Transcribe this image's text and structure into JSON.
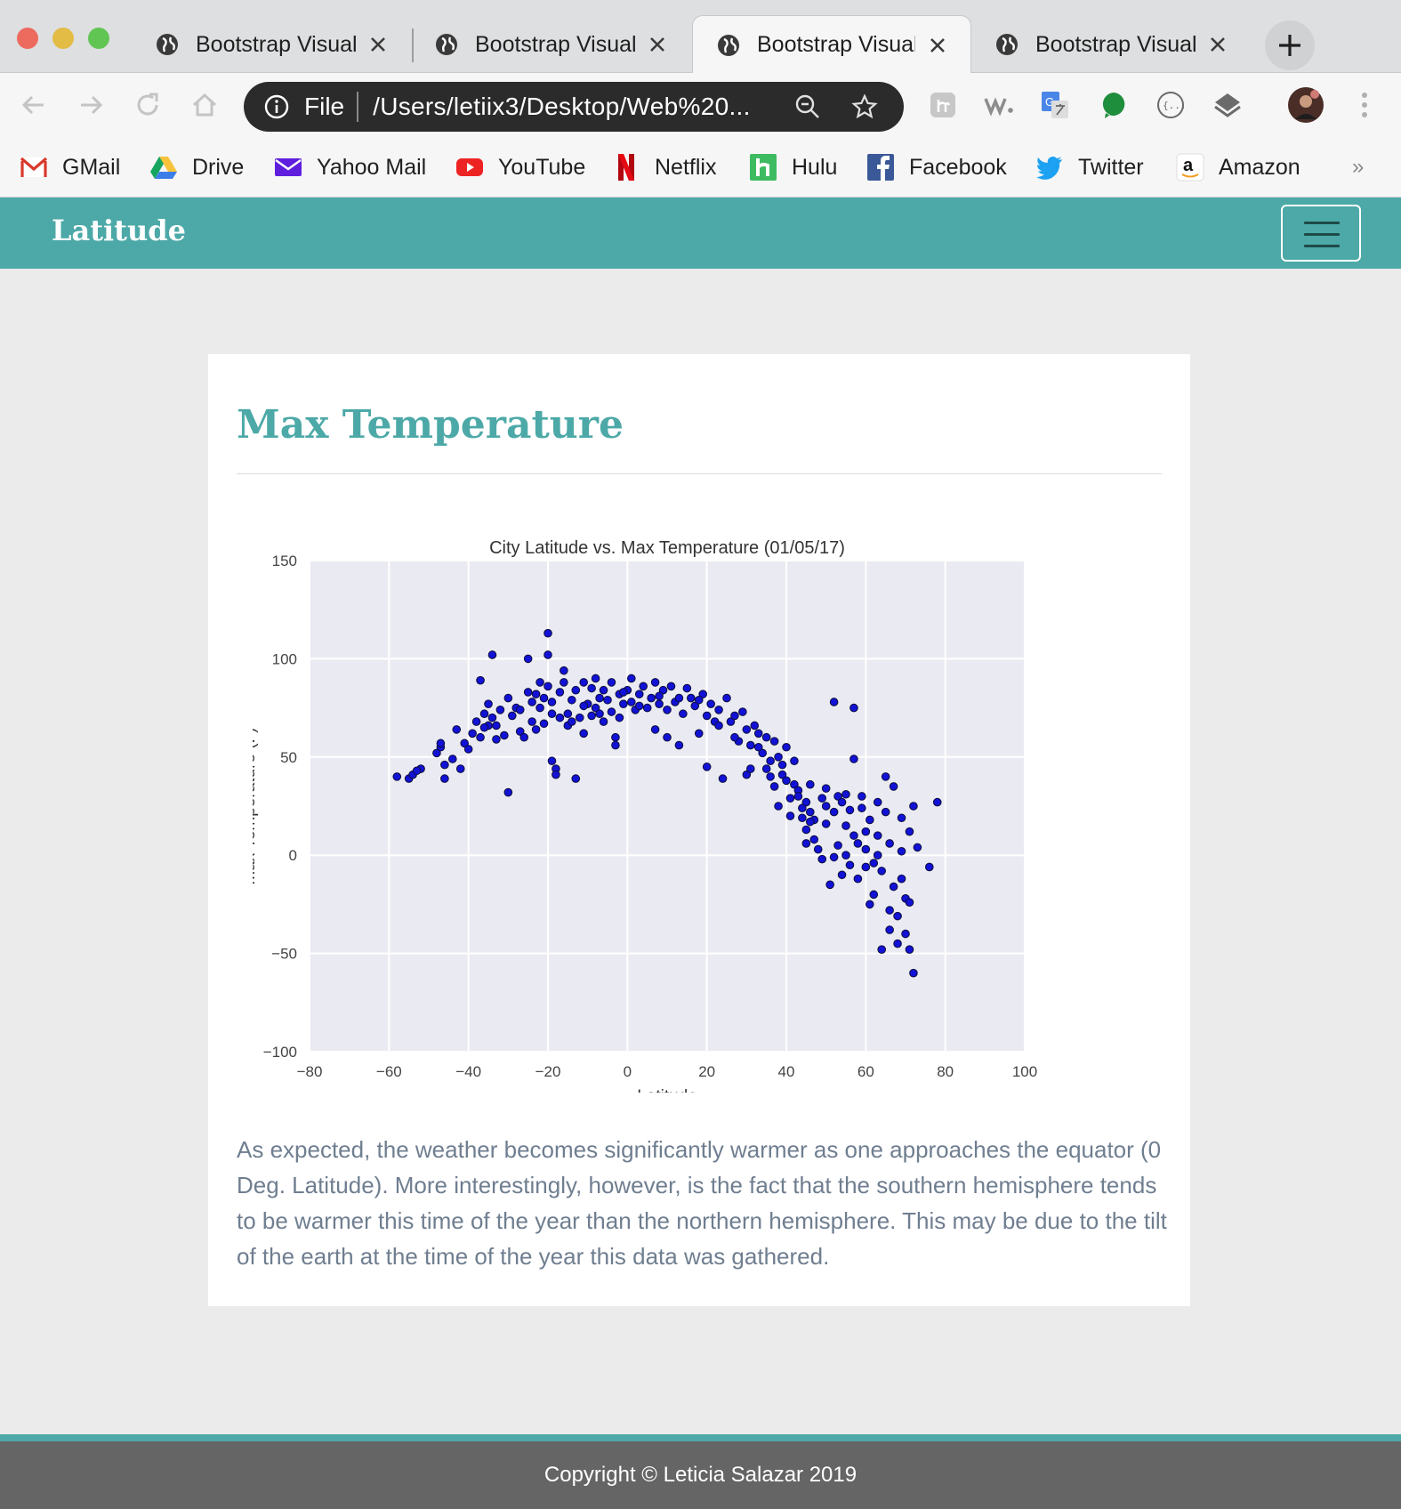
{
  "browser": {
    "tabs": [
      {
        "title": "Bootstrap Visual",
        "active": false
      },
      {
        "title": "Bootstrap Visual",
        "active": false
      },
      {
        "title": "Bootstrap Visual",
        "active": true
      },
      {
        "title": "Bootstrap Visual",
        "active": false
      }
    ],
    "omnibox": {
      "scheme": "File",
      "url": "/Users/letiix3/Desktop/Web%20..."
    },
    "bookmarks": [
      {
        "label": "GMail",
        "icon": "gmail-icon"
      },
      {
        "label": "Drive",
        "icon": "drive-icon"
      },
      {
        "label": "Yahoo Mail",
        "icon": "yahoo-mail-icon"
      },
      {
        "label": "YouTube",
        "icon": "youtube-icon"
      },
      {
        "label": "Netflix",
        "icon": "netflix-icon"
      },
      {
        "label": "Hulu",
        "icon": "hulu-icon"
      },
      {
        "label": "Facebook",
        "icon": "facebook-icon"
      },
      {
        "label": "Twitter",
        "icon": "twitter-icon"
      },
      {
        "label": "Amazon",
        "icon": "amazon-icon"
      }
    ],
    "bookmarks_more": "»"
  },
  "navbar": {
    "brand": "Latitude"
  },
  "card": {
    "title": "Max Temperature",
    "description": "As expected, the weather becomes significantly warmer as one approaches the equator (0 Deg. Latitude). More interestingly, however, is the fact that the southern hemisphere tends to be warmer this time of the year than the northern hemisphere. This may be due to the tilt of the earth at the time of the year this data was gathered."
  },
  "footer": {
    "text": "Copyright © Leticia Salazar 2019"
  },
  "colors": {
    "accent": "#4ca9a7",
    "point_fill": "#1212d6",
    "point_stroke": "#0b0b3a",
    "plot_bg": "#eaeaf2"
  },
  "chart_data": {
    "type": "scatter",
    "title": "City Latitude vs. Max Temperature (01/05/17)",
    "xlabel": "Latitude",
    "ylabel": "Max Temperature (F)",
    "xlim": [
      -80,
      100
    ],
    "ylim": [
      -100,
      150
    ],
    "xticks": [
      -80,
      -60,
      -40,
      -20,
      0,
      20,
      40,
      60,
      80,
      100
    ],
    "yticks": [
      -100,
      -50,
      0,
      50,
      100,
      150
    ],
    "xtick_labels": [
      "−80",
      "−60",
      "−40",
      "−20",
      "0",
      "20",
      "40",
      "60",
      "80",
      "100"
    ],
    "ytick_labels": [
      "−100",
      "−50",
      "0",
      "50",
      "100",
      "150"
    ],
    "grid": true,
    "points": [
      [
        -55,
        39
      ],
      [
        -54,
        41
      ],
      [
        -52,
        44
      ],
      [
        -47,
        55
      ],
      [
        -47,
        57
      ],
      [
        -46,
        46
      ],
      [
        -46,
        39
      ],
      [
        -43,
        64
      ],
      [
        -42,
        44
      ],
      [
        -41,
        57
      ],
      [
        -39,
        62
      ],
      [
        -38,
        68
      ],
      [
        -37,
        89
      ],
      [
        -37,
        60
      ],
      [
        -36,
        72
      ],
      [
        -35,
        66
      ],
      [
        -35,
        77
      ],
      [
        -34,
        102
      ],
      [
        -34,
        70
      ],
      [
        -33,
        66
      ],
      [
        -33,
        59
      ],
      [
        -32,
        74
      ],
      [
        -31,
        61
      ],
      [
        -30,
        32
      ],
      [
        -30,
        80
      ],
      [
        -29,
        71
      ],
      [
        -28,
        75
      ],
      [
        -27,
        63
      ],
      [
        -26,
        60
      ],
      [
        -25,
        83
      ],
      [
        -25,
        100
      ],
      [
        -24,
        68
      ],
      [
        -24,
        78
      ],
      [
        -23,
        64
      ],
      [
        -23,
        82
      ],
      [
        -22,
        75
      ],
      [
        -22,
        88
      ],
      [
        -21,
        80
      ],
      [
        -20,
        113
      ],
      [
        -20,
        102
      ],
      [
        -20,
        86
      ],
      [
        -19,
        78
      ],
      [
        -19,
        72
      ],
      [
        -19,
        48
      ],
      [
        -18,
        44
      ],
      [
        -18,
        41
      ],
      [
        -17,
        70
      ],
      [
        -17,
        83
      ],
      [
        -16,
        88
      ],
      [
        -16,
        94
      ],
      [
        -15,
        72
      ],
      [
        -15,
        66
      ],
      [
        -14,
        79
      ],
      [
        -14,
        68
      ],
      [
        -13,
        39
      ],
      [
        -13,
        84
      ],
      [
        -12,
        70
      ],
      [
        -11,
        62
      ],
      [
        -11,
        88
      ],
      [
        -10,
        77
      ],
      [
        -9,
        71
      ],
      [
        -9,
        85
      ],
      [
        -8,
        90
      ],
      [
        -8,
        75
      ],
      [
        -7,
        80
      ],
      [
        -6,
        68
      ],
      [
        -6,
        84
      ],
      [
        -5,
        79
      ],
      [
        -4,
        73
      ],
      [
        -4,
        88
      ],
      [
        -3,
        60
      ],
      [
        -3,
        56
      ],
      [
        -2,
        82
      ],
      [
        -2,
        70
      ],
      [
        -1,
        77
      ],
      [
        0,
        84
      ],
      [
        1,
        90
      ],
      [
        1,
        78
      ],
      [
        2,
        74
      ],
      [
        3,
        82
      ],
      [
        4,
        86
      ],
      [
        5,
        75
      ],
      [
        6,
        80
      ],
      [
        7,
        64
      ],
      [
        7,
        88
      ],
      [
        8,
        77
      ],
      [
        9,
        84
      ],
      [
        10,
        74
      ],
      [
        10,
        60
      ],
      [
        11,
        86
      ],
      [
        12,
        78
      ],
      [
        13,
        56
      ],
      [
        14,
        72
      ],
      [
        15,
        85
      ],
      [
        16,
        80
      ],
      [
        17,
        76
      ],
      [
        18,
        62
      ],
      [
        19,
        82
      ],
      [
        20,
        45
      ],
      [
        20,
        71
      ],
      [
        21,
        77
      ],
      [
        22,
        68
      ],
      [
        23,
        74
      ],
      [
        24,
        39
      ],
      [
        25,
        80
      ],
      [
        26,
        68
      ],
      [
        27,
        71
      ],
      [
        28,
        58
      ],
      [
        29,
        73
      ],
      [
        30,
        64
      ],
      [
        30,
        41
      ],
      [
        31,
        44
      ],
      [
        32,
        66
      ],
      [
        33,
        62
      ],
      [
        33,
        55
      ],
      [
        34,
        52
      ],
      [
        35,
        60
      ],
      [
        35,
        44
      ],
      [
        36,
        48
      ],
      [
        37,
        35
      ],
      [
        37,
        58
      ],
      [
        38,
        50
      ],
      [
        39,
        41
      ],
      [
        40,
        38
      ],
      [
        40,
        55
      ],
      [
        41,
        20
      ],
      [
        41,
        29
      ],
      [
        42,
        48
      ],
      [
        42,
        36
      ],
      [
        43,
        33
      ],
      [
        44,
        19
      ],
      [
        44,
        24
      ],
      [
        45,
        27
      ],
      [
        45,
        13
      ],
      [
        46,
        36
      ],
      [
        46,
        22
      ],
      [
        47,
        8
      ],
      [
        47,
        18
      ],
      [
        48,
        3
      ],
      [
        49,
        29
      ],
      [
        49,
        -2
      ],
      [
        50,
        25
      ],
      [
        50,
        34
      ],
      [
        51,
        -15
      ],
      [
        52,
        22
      ],
      [
        52,
        -1
      ],
      [
        53,
        30
      ],
      [
        53,
        5
      ],
      [
        54,
        27
      ],
      [
        54,
        -10
      ],
      [
        55,
        31
      ],
      [
        55,
        15
      ],
      [
        56,
        -5
      ],
      [
        56,
        23
      ],
      [
        57,
        10
      ],
      [
        57,
        49
      ],
      [
        58,
        6
      ],
      [
        58,
        -12
      ],
      [
        59,
        24
      ],
      [
        59,
        30
      ],
      [
        60,
        12
      ],
      [
        60,
        3
      ],
      [
        61,
        -25
      ],
      [
        61,
        18
      ],
      [
        62,
        -4
      ],
      [
        62,
        -20
      ],
      [
        63,
        27
      ],
      [
        63,
        10
      ],
      [
        64,
        -48
      ],
      [
        64,
        -8
      ],
      [
        65,
        40
      ],
      [
        65,
        22
      ],
      [
        66,
        -38
      ],
      [
        66,
        6
      ],
      [
        67,
        -16
      ],
      [
        67,
        35
      ],
      [
        68,
        -31
      ],
      [
        68,
        -45
      ],
      [
        69,
        19
      ],
      [
        69,
        2
      ],
      [
        70,
        -22
      ],
      [
        70,
        -40
      ],
      [
        71,
        12
      ],
      [
        71,
        -48
      ],
      [
        72,
        25
      ],
      [
        72,
        -60
      ],
      [
        73,
        4
      ],
      [
        76,
        -6
      ],
      [
        78,
        27
      ],
      [
        52,
        78
      ],
      [
        57,
        75
      ],
      [
        -58,
        40
      ],
      [
        -53,
        43
      ],
      [
        -48,
        52
      ],
      [
        -44,
        49
      ],
      [
        -40,
        54
      ],
      [
        -36,
        65
      ],
      [
        -27,
        74
      ],
      [
        -21,
        67
      ],
      [
        -11,
        76
      ],
      [
        -7,
        72
      ],
      [
        -1,
        83
      ],
      [
        3,
        76
      ],
      [
        8,
        81
      ],
      [
        13,
        80
      ],
      [
        18,
        79
      ],
      [
        23,
        66
      ],
      [
        27,
        60
      ],
      [
        31,
        56
      ],
      [
        36,
        40
      ],
      [
        39,
        46
      ],
      [
        43,
        30
      ],
      [
        46,
        17
      ],
      [
        50,
        16
      ],
      [
        55,
        0
      ],
      [
        60,
        -6
      ],
      [
        63,
        0
      ],
      [
        66,
        -28
      ],
      [
        69,
        -12
      ],
      [
        71,
        -24
      ],
      [
        38,
        25
      ],
      [
        45,
        6
      ]
    ]
  }
}
